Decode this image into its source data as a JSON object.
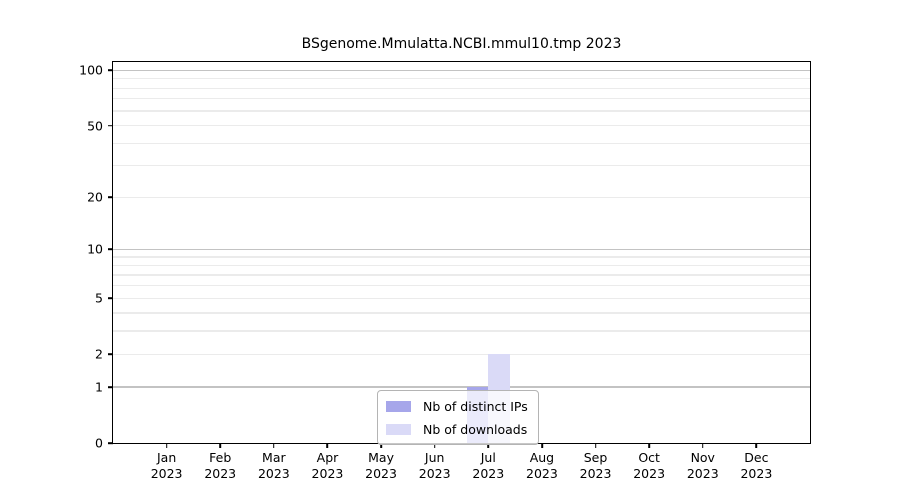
{
  "title": "BSgenome.Mmulatta.NCBI.mmul10.tmp 2023",
  "chart_data": {
    "type": "bar",
    "title": "BSgenome.Mmulatta.NCBI.mmul10.tmp 2023",
    "categories": [
      "Jan",
      "Feb",
      "Mar",
      "Apr",
      "May",
      "Jun",
      "Jul",
      "Aug",
      "Sep",
      "Oct",
      "Nov",
      "Dec"
    ],
    "category_year": "2023",
    "series": [
      {
        "name": "Nb of distinct IPs",
        "color": "#a6a6ea",
        "values": [
          0,
          0,
          0,
          0,
          0,
          0,
          1,
          0,
          0,
          0,
          0,
          0
        ]
      },
      {
        "name": "Nb of downloads",
        "color": "#dadaf7",
        "values": [
          0,
          0,
          0,
          0,
          0,
          0,
          2,
          0,
          0,
          0,
          0,
          0
        ]
      }
    ],
    "y_axis": {
      "scale": "log1p",
      "ylim": [
        0,
        111
      ],
      "ticks": [
        0,
        1,
        2,
        5,
        10,
        20,
        50,
        100
      ],
      "major_gridlines": [
        1,
        10,
        100
      ],
      "minor_gridlines": [
        2,
        3,
        4,
        5,
        6,
        7,
        8,
        9,
        20,
        30,
        40,
        50,
        60,
        70,
        80,
        90
      ]
    },
    "x_axis": {
      "tick_labels_line2": "2023"
    },
    "legend": {
      "position": "bottom-center"
    },
    "grid": true,
    "colors": {
      "major_grid": "#c3c3c3",
      "minor_grid": "#ebebeb",
      "axis": "#000000",
      "background": "#ffffff"
    }
  }
}
